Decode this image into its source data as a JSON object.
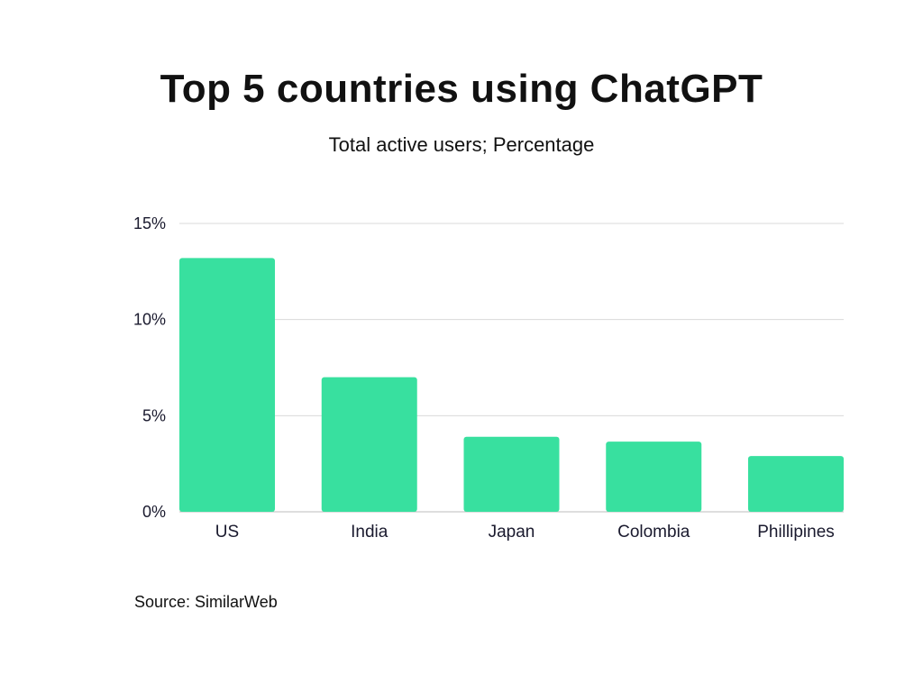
{
  "chart_data": {
    "type": "bar",
    "title": "Top 5 countries using ChatGPT",
    "subtitle": "Total active users; Percentage",
    "categories": [
      "US",
      "India",
      "Japan",
      "Colombia",
      "Phillipines"
    ],
    "values": [
      13.2,
      7.0,
      3.9,
      3.65,
      2.9
    ],
    "ylim": [
      0,
      15
    ],
    "yticks": [
      0,
      5,
      10,
      15
    ],
    "ytick_labels": [
      "0%",
      "5%",
      "10%",
      "15%"
    ],
    "xlabel": "",
    "ylabel": "",
    "grid": true,
    "bar_color": "#38e09f",
    "grid_color": "#d9d9d9"
  },
  "source": "Source: SimilarWeb"
}
